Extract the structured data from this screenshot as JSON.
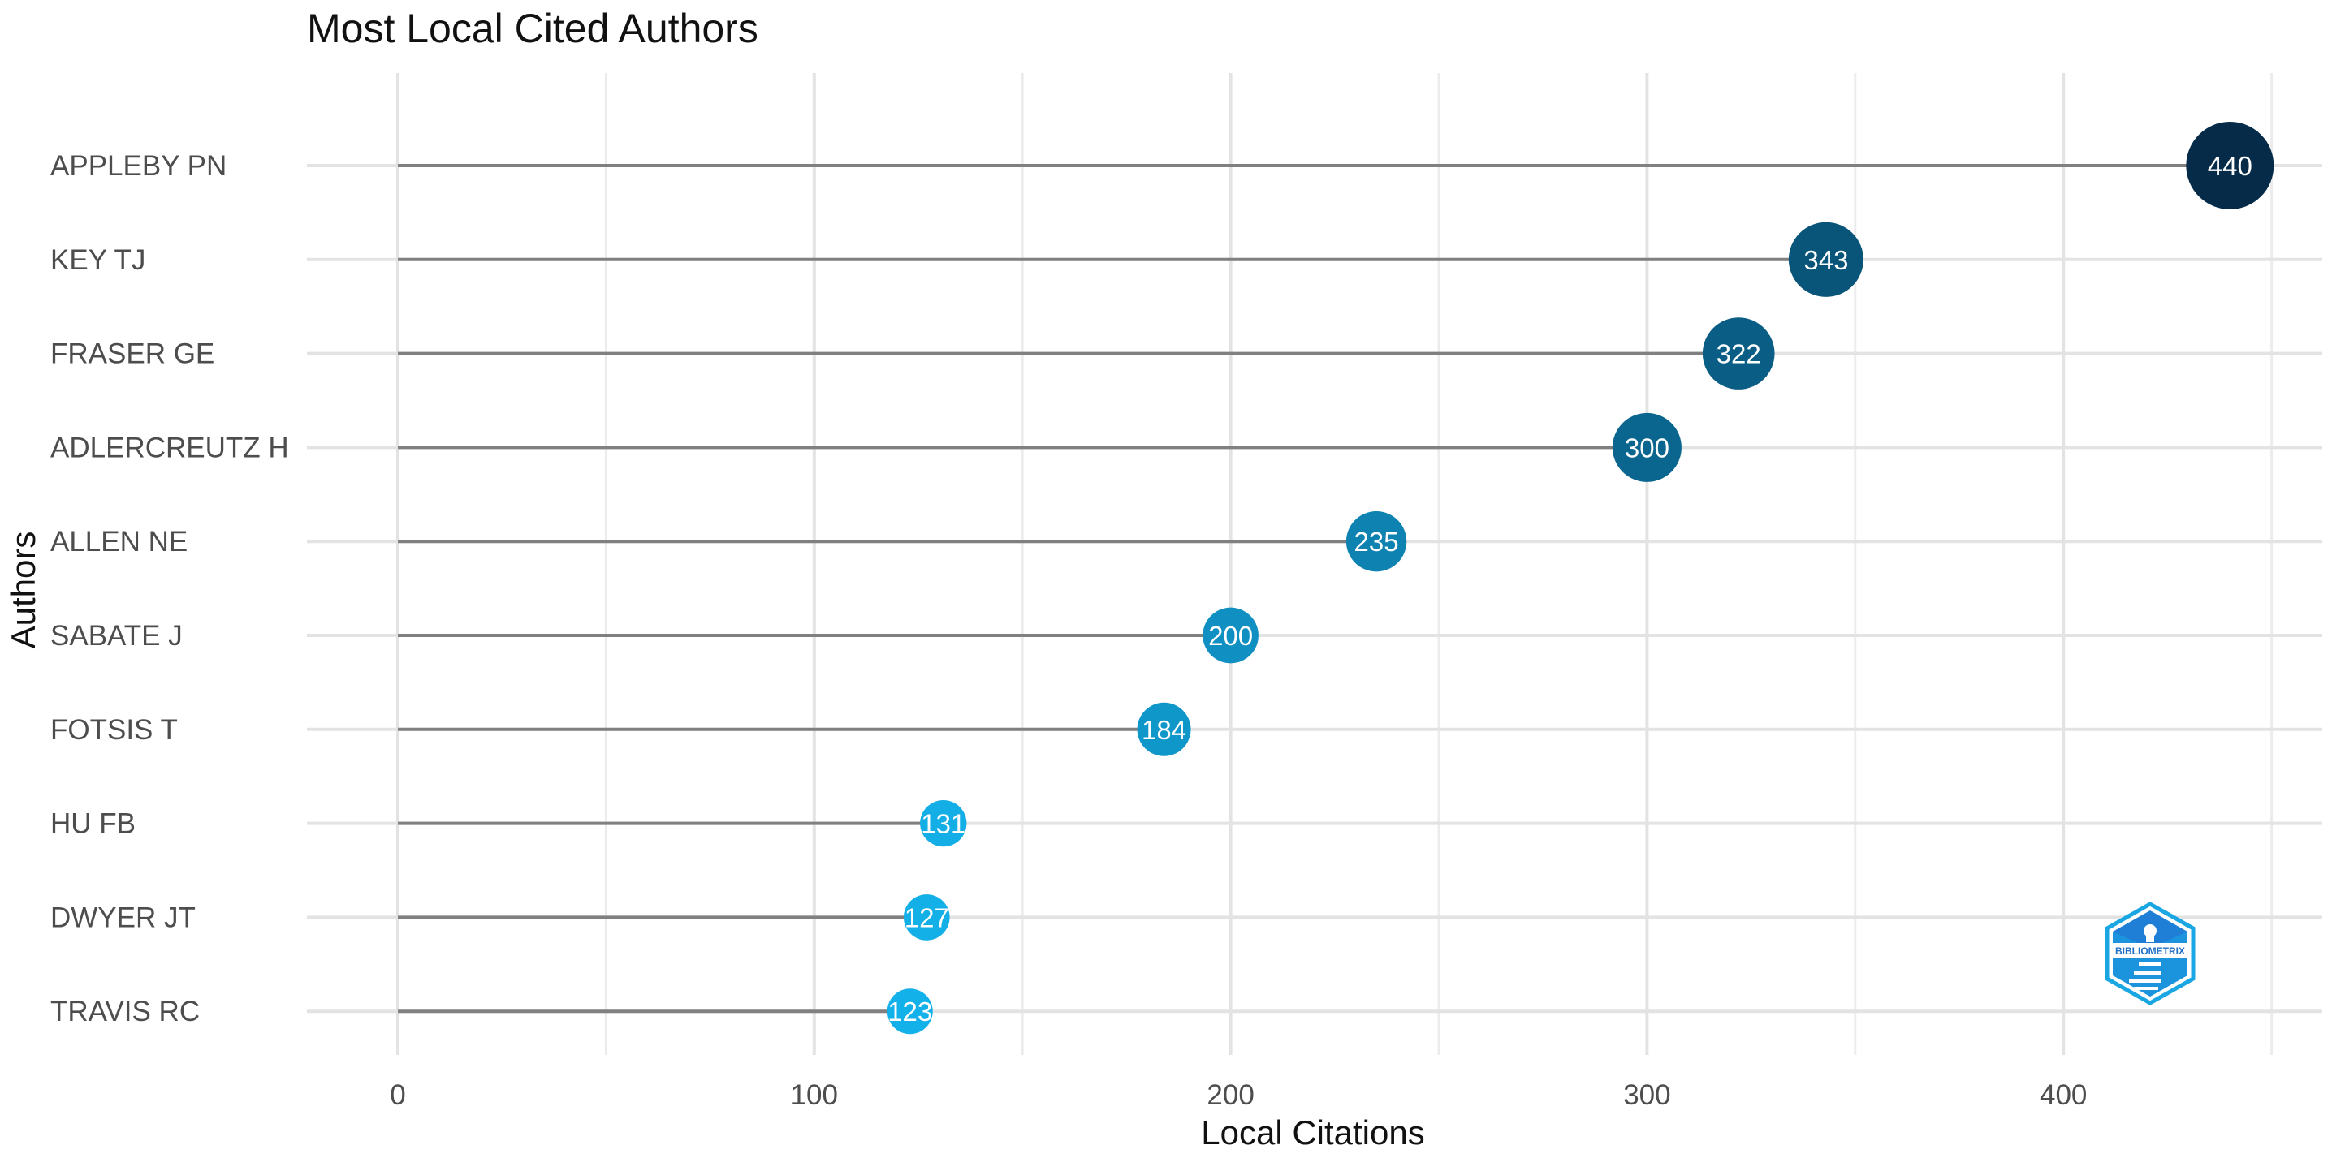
{
  "chart_data": {
    "type": "lollipop",
    "title": "Most Local Cited Authors",
    "xlabel": "Local Citations",
    "ylabel": "Authors",
    "xlim": [
      -22,
      461
    ],
    "x_ticks": [
      0,
      100,
      200,
      300,
      400
    ],
    "x_minor_ticks": [
      50,
      150,
      250,
      350,
      450
    ],
    "grid": true,
    "categories": [
      "APPLEBY PN",
      "KEY TJ",
      "FRASER GE",
      "ADLERCREUTZ H",
      "ALLEN NE",
      "SABATE J",
      "FOTSIS T",
      "HU FB",
      "DWYER JT",
      "TRAVIS RC"
    ],
    "values": [
      440,
      343,
      322,
      300,
      235,
      200,
      184,
      131,
      127,
      123
    ],
    "color_scale": {
      "low": "#13b1e9",
      "high": "#052b48"
    },
    "logo": {
      "text": "BIBLIOMETRIX",
      "icon": "bibliometrix-logo-icon"
    }
  }
}
